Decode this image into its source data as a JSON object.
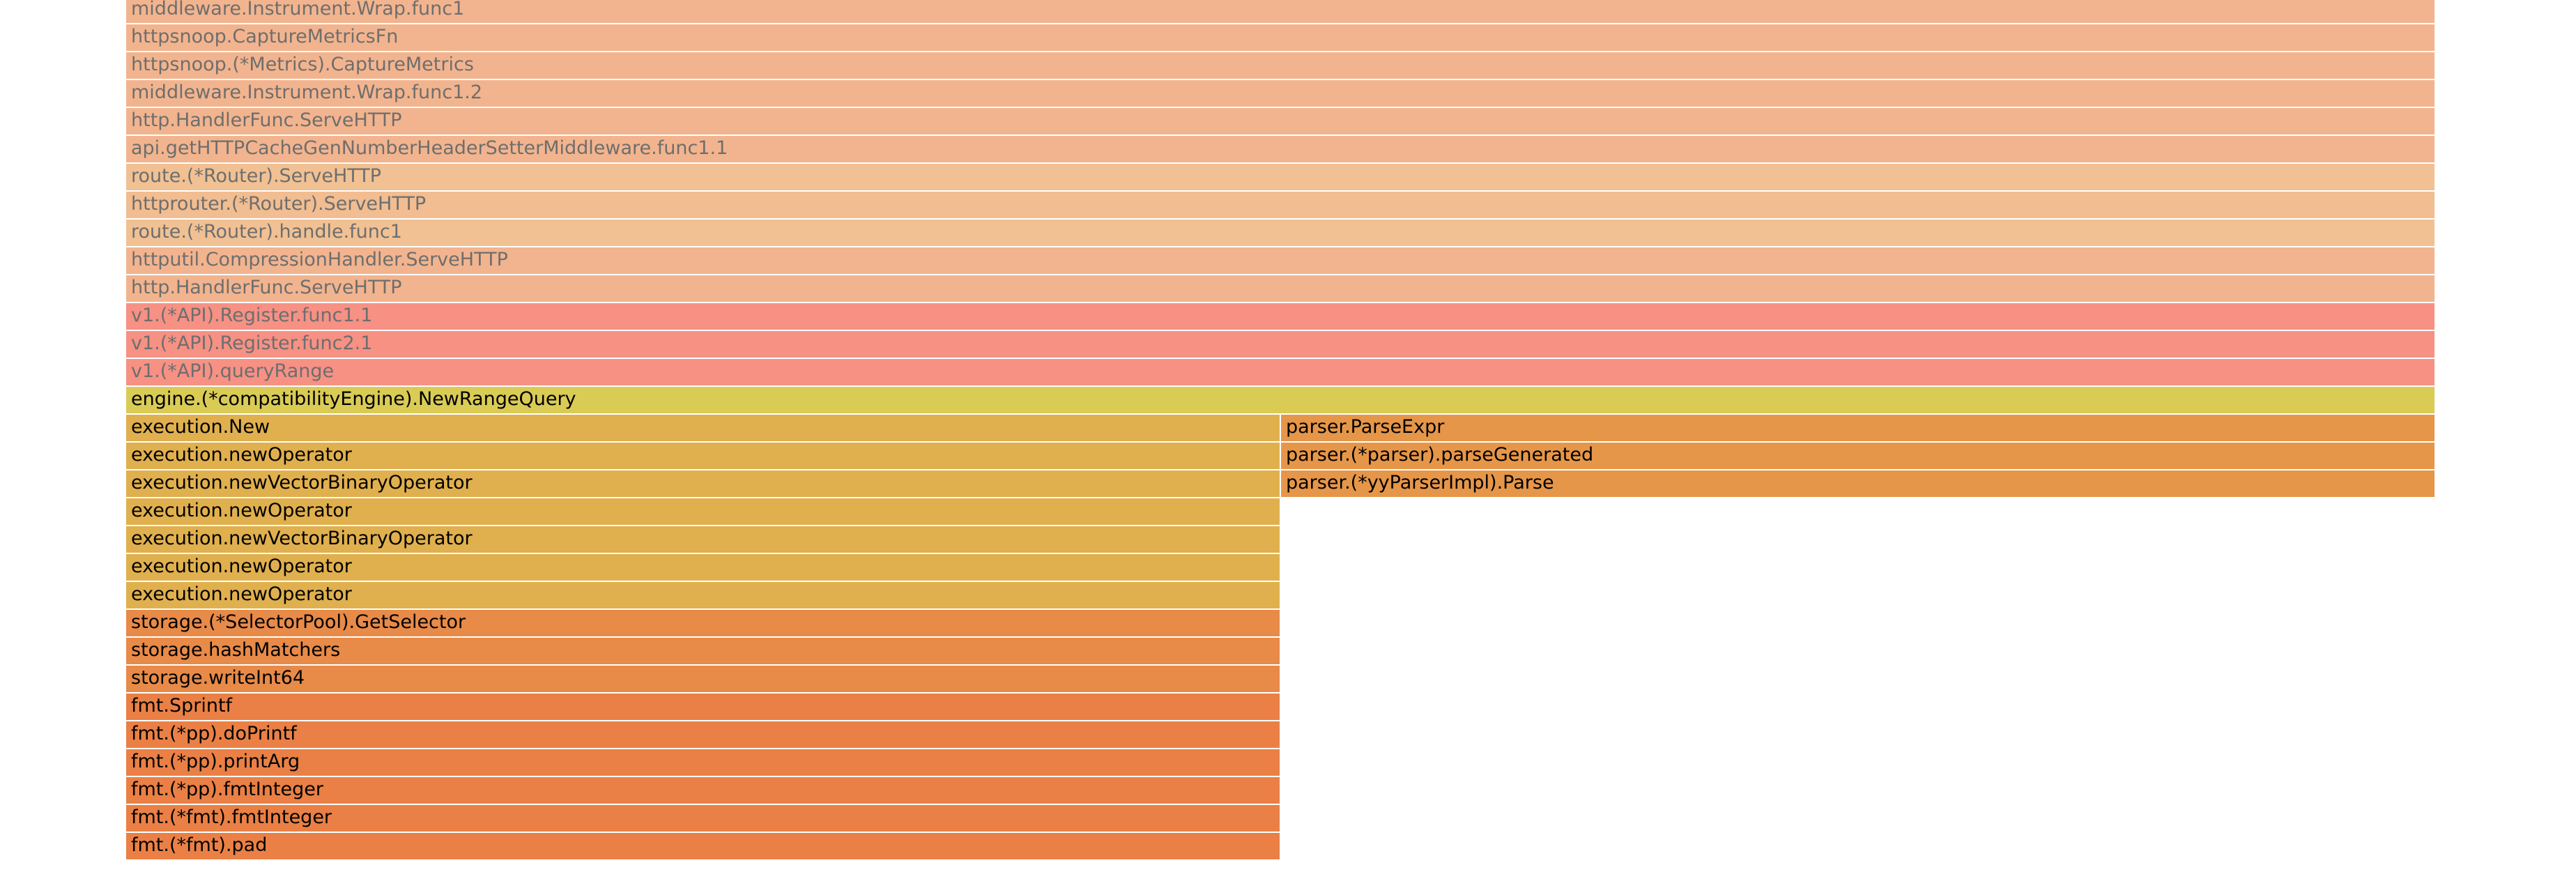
{
  "flamegraph": {
    "frames": [
      {
        "label": "middleware.Instrument.Wrap.func1",
        "row": 0,
        "start": 0,
        "width": 1,
        "color": "#F2B48E",
        "text_color": "#6e6e6e"
      },
      {
        "label": "httpsnoop.CaptureMetricsFn",
        "row": 1,
        "start": 0,
        "width": 1,
        "color": "#F2B48E",
        "text_color": "#6e6e6e"
      },
      {
        "label": "httpsnoop.(*Metrics).CaptureMetrics",
        "row": 2,
        "start": 0,
        "width": 1,
        "color": "#F2B48E",
        "text_color": "#6e6e6e"
      },
      {
        "label": "middleware.Instrument.Wrap.func1.2",
        "row": 3,
        "start": 0,
        "width": 1,
        "color": "#F2B48E",
        "text_color": "#6e6e6e"
      },
      {
        "label": "http.HandlerFunc.ServeHTTP",
        "row": 4,
        "start": 0,
        "width": 1,
        "color": "#F2B48E",
        "text_color": "#6e6e6e"
      },
      {
        "label": "api.getHTTPCacheGenNumberHeaderSetterMiddleware.func1.1",
        "row": 5,
        "start": 0,
        "width": 1,
        "color": "#F2B48E",
        "text_color": "#6e6e6e"
      },
      {
        "label": "route.(*Router).ServeHTTP",
        "row": 6,
        "start": 0,
        "width": 1,
        "color": "#F1C193",
        "text_color": "#6e6e6e"
      },
      {
        "label": "httprouter.(*Router).ServeHTTP",
        "row": 7,
        "start": 0,
        "width": 1,
        "color": "#F1BD91",
        "text_color": "#6e6e6e"
      },
      {
        "label": "route.(*Router).handle.func1",
        "row": 8,
        "start": 0,
        "width": 1,
        "color": "#F1C193",
        "text_color": "#6e6e6e"
      },
      {
        "label": "httputil.CompressionHandler.ServeHTTP",
        "row": 9,
        "start": 0,
        "width": 1,
        "color": "#F2B48E",
        "text_color": "#6e6e6e"
      },
      {
        "label": "http.HandlerFunc.ServeHTTP",
        "row": 10,
        "start": 0,
        "width": 1,
        "color": "#F2B48E",
        "text_color": "#6e6e6e"
      },
      {
        "label": "v1.(*API).Register.func1.1",
        "row": 11,
        "start": 0,
        "width": 1,
        "color": "#F69184",
        "text_color": "#6e6e6e"
      },
      {
        "label": "v1.(*API).Register.func2.1",
        "row": 12,
        "start": 0,
        "width": 1,
        "color": "#F69184",
        "text_color": "#6e6e6e"
      },
      {
        "label": "v1.(*API).queryRange",
        "row": 13,
        "start": 0,
        "width": 1,
        "color": "#F69184",
        "text_color": "#6e6e6e"
      },
      {
        "label": "engine.(*compatibilityEngine).NewRangeQuery",
        "row": 14,
        "start": 0,
        "width": 1,
        "color": "#DACB55",
        "text_color": "#000000"
      },
      {
        "label": "execution.New",
        "row": 15,
        "start": 0,
        "width": 0.5,
        "color": "#E0B04E",
        "text_color": "#000000"
      },
      {
        "label": "parser.ParseExpr",
        "row": 15,
        "start": 0.5,
        "width": 0.5,
        "color": "#E69649",
        "text_color": "#000000"
      },
      {
        "label": "execution.newOperator",
        "row": 16,
        "start": 0,
        "width": 0.5,
        "color": "#E0B04E",
        "text_color": "#000000"
      },
      {
        "label": "parser.(*parser).parseGenerated",
        "row": 16,
        "start": 0.5,
        "width": 0.5,
        "color": "#E69649",
        "text_color": "#000000"
      },
      {
        "label": "execution.newVectorBinaryOperator",
        "row": 17,
        "start": 0,
        "width": 0.5,
        "color": "#E0B04E",
        "text_color": "#000000"
      },
      {
        "label": "parser.(*yyParserImpl).Parse",
        "row": 17,
        "start": 0.5,
        "width": 0.5,
        "color": "#E69649",
        "text_color": "#000000"
      },
      {
        "label": "execution.newOperator",
        "row": 18,
        "start": 0,
        "width": 0.5,
        "color": "#E0B04E",
        "text_color": "#000000"
      },
      {
        "label": "execution.newVectorBinaryOperator",
        "row": 19,
        "start": 0,
        "width": 0.5,
        "color": "#E0B04E",
        "text_color": "#000000"
      },
      {
        "label": "execution.newOperator",
        "row": 20,
        "start": 0,
        "width": 0.5,
        "color": "#E0B04E",
        "text_color": "#000000"
      },
      {
        "label": "execution.newOperator",
        "row": 21,
        "start": 0,
        "width": 0.5,
        "color": "#E0B04E",
        "text_color": "#000000"
      },
      {
        "label": "storage.(*SelectorPool).GetSelector",
        "row": 22,
        "start": 0,
        "width": 0.5,
        "color": "#E88A48",
        "text_color": "#000000"
      },
      {
        "label": "storage.hashMatchers",
        "row": 23,
        "start": 0,
        "width": 0.5,
        "color": "#E88A48",
        "text_color": "#000000"
      },
      {
        "label": "storage.writeInt64",
        "row": 24,
        "start": 0,
        "width": 0.5,
        "color": "#E88A48",
        "text_color": "#000000"
      },
      {
        "label": "fmt.Sprintf",
        "row": 25,
        "start": 0,
        "width": 0.5,
        "color": "#EA8045",
        "text_color": "#000000"
      },
      {
        "label": "fmt.(*pp).doPrintf",
        "row": 26,
        "start": 0,
        "width": 0.5,
        "color": "#EA8045",
        "text_color": "#000000"
      },
      {
        "label": "fmt.(*pp).printArg",
        "row": 27,
        "start": 0,
        "width": 0.5,
        "color": "#EA8045",
        "text_color": "#000000"
      },
      {
        "label": "fmt.(*pp).fmtInteger",
        "row": 28,
        "start": 0,
        "width": 0.5,
        "color": "#EA8045",
        "text_color": "#000000"
      },
      {
        "label": "fmt.(*fmt).fmtInteger",
        "row": 29,
        "start": 0,
        "width": 0.5,
        "color": "#EA8045",
        "text_color": "#000000"
      },
      {
        "label": "fmt.(*fmt).pad",
        "row": 30,
        "start": 0,
        "width": 0.5,
        "color": "#EA8045",
        "text_color": "#000000"
      }
    ]
  }
}
